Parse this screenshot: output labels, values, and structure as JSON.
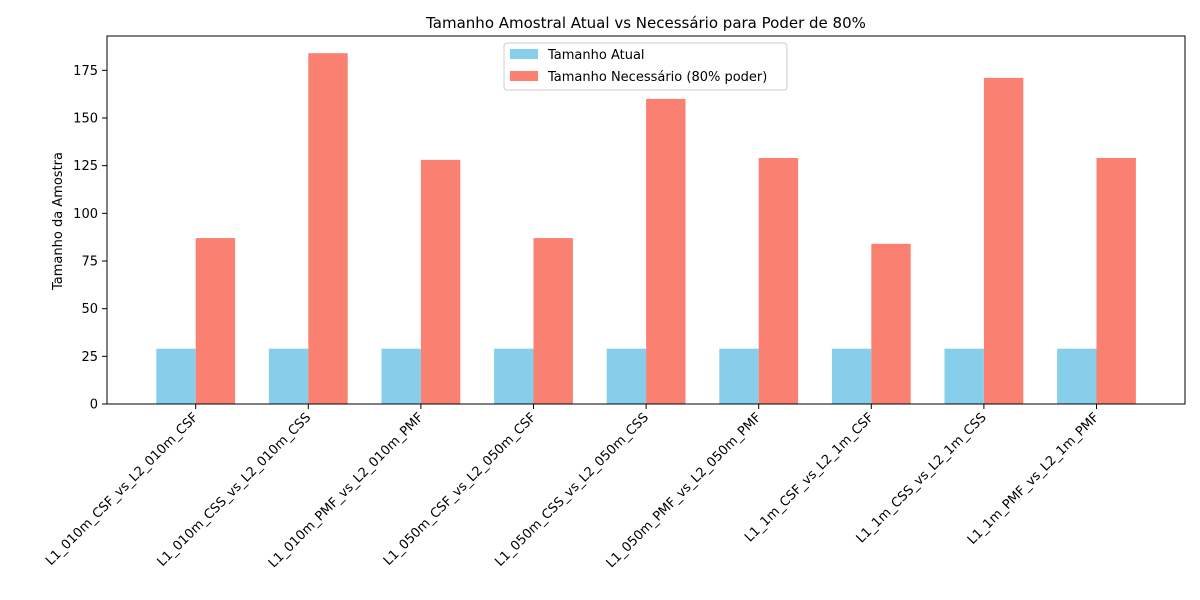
{
  "chart_data": {
    "type": "bar",
    "title": "Tamanho Amostral Atual vs Necessário para Poder de 80%",
    "xlabel": "",
    "ylabel": "Tamanho da Amostra",
    "ylim": [
      0,
      193
    ],
    "yticks": [
      0,
      25,
      50,
      75,
      100,
      125,
      150,
      175
    ],
    "grid": false,
    "legend_position": "top-center",
    "categories": [
      "L1_010m_CSF_vs_L2_010m_CSF",
      "L1_010m_CSS_vs_L2_010m_CSS",
      "L1_010m_PMF_vs_L2_010m_PMF",
      "L1_050m_CSF_vs_L2_050m_CSF",
      "L1_050m_CSS_vs_L2_050m_CSS",
      "L1_050m_PMF_vs_L2_050m_PMF",
      "L1_1m_CSF_vs_L2_1m_CSF",
      "L1_1m_CSS_vs_L2_1m_CSS",
      "L1_1m_PMF_vs_L2_1m_PMF"
    ],
    "series": [
      {
        "name": "Tamanho Atual",
        "color": "#87ceeb",
        "values": [
          29,
          29,
          29,
          29,
          29,
          29,
          29,
          29,
          29
        ]
      },
      {
        "name": "Tamanho Necessário (80% poder)",
        "color": "#fa8072",
        "values": [
          87,
          184,
          128,
          87,
          160,
          129,
          84,
          171,
          129
        ]
      }
    ]
  }
}
